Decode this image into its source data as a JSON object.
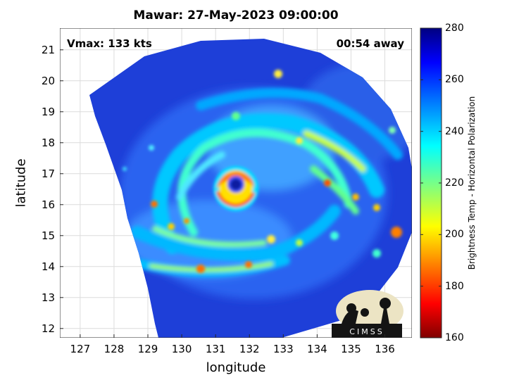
{
  "title": "Mawar: 27-May-2023 09:00:00",
  "vmax_label": "Vmax: 133 kts",
  "time_away": "00:54 away",
  "logo_text": "CIMSS",
  "chart_data": {
    "type": "heatmap",
    "xlabel": "longitude",
    "ylabel": "latitude",
    "xlim": [
      126.4,
      136.8
    ],
    "ylim": [
      11.7,
      21.7
    ],
    "xticks": [
      "127",
      "128",
      "129",
      "130",
      "131",
      "132",
      "133",
      "134",
      "135",
      "136"
    ],
    "yticks": [
      "12",
      "13",
      "14",
      "15",
      "16",
      "17",
      "18",
      "19",
      "20",
      "21"
    ],
    "grid": true,
    "colorbar": {
      "label": "Brightness Temp - Horizontal Polarization",
      "min": 160,
      "max": 280,
      "ticks": [
        "280",
        "260",
        "240",
        "220",
        "200",
        "180",
        "160"
      ],
      "colormap": "jet"
    },
    "storm_eye": {
      "lon": 131.6,
      "lat": 16.7
    }
  }
}
